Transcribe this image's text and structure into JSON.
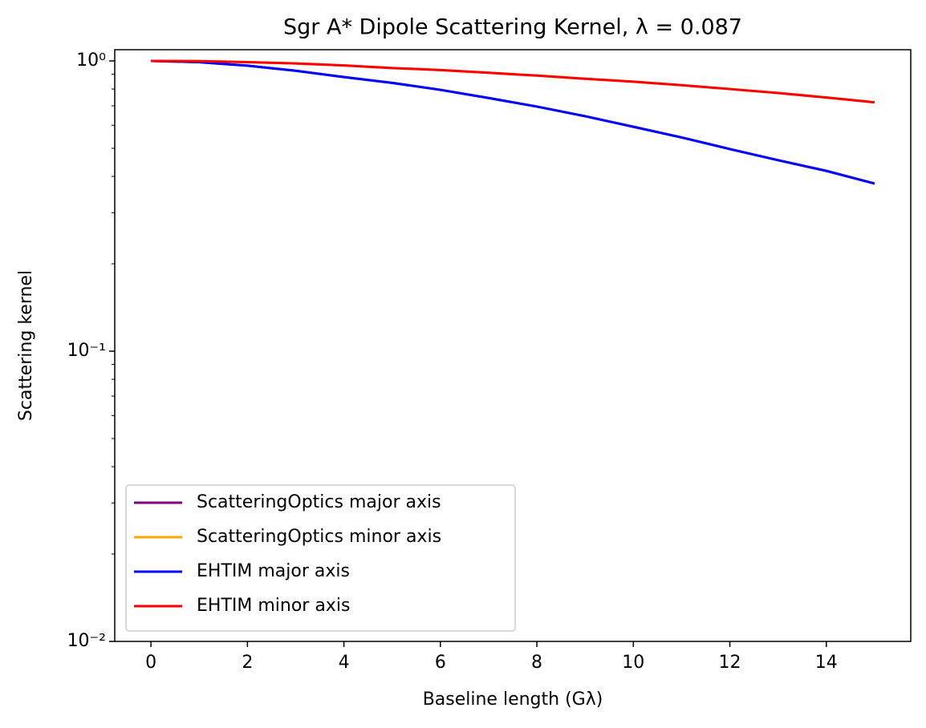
{
  "chart_data": {
    "type": "line",
    "title": "Sgr A* Dipole Scattering Kernel, λ = 0.087",
    "x_label": "Baseline length (Gλ)",
    "y_label": "Scattering kernel",
    "x": [
      0,
      1,
      2,
      3,
      4,
      5,
      6,
      7,
      8,
      9,
      10,
      11,
      12,
      13,
      14,
      15
    ],
    "series": [
      {
        "name": "ScatteringOptics major axis",
        "color": "#800080",
        "values": [
          1,
          0.99,
          0.963,
          0.925,
          0.88,
          0.84,
          0.795,
          0.745,
          0.696,
          0.645,
          0.593,
          0.545,
          0.497,
          0.455,
          0.418,
          0.378
        ]
      },
      {
        "name": "ScatteringOptics minor axis",
        "color": "#ffa500",
        "values": [
          1,
          0.998,
          0.99,
          0.98,
          0.965,
          0.945,
          0.93,
          0.91,
          0.89,
          0.868,
          0.848,
          0.825,
          0.8,
          0.775,
          0.748,
          0.72
        ]
      },
      {
        "name": "EHTIM major axis",
        "color": "#0000ff",
        "values": [
          1,
          0.99,
          0.963,
          0.925,
          0.88,
          0.84,
          0.795,
          0.745,
          0.696,
          0.645,
          0.593,
          0.545,
          0.497,
          0.455,
          0.418,
          0.378
        ]
      },
      {
        "name": "EHTIM minor axis",
        "color": "#ff0000",
        "values": [
          1,
          0.998,
          0.99,
          0.98,
          0.965,
          0.945,
          0.93,
          0.91,
          0.89,
          0.868,
          0.848,
          0.825,
          0.8,
          0.775,
          0.748,
          0.72
        ]
      }
    ],
    "xlim": [
      -0.75,
      15.75
    ],
    "xticks": [
      0,
      2,
      4,
      6,
      8,
      10,
      12,
      14
    ],
    "ylim": [
      0.01,
      1.093
    ],
    "log_y": true,
    "yticks": [
      {
        "value": 0.01,
        "label": "10⁻²"
      },
      {
        "value": 0.1,
        "label": "10⁻¹"
      },
      {
        "value": 1,
        "label": "10⁰"
      }
    ],
    "yminor": [
      0.02,
      0.03,
      0.04,
      0.05,
      0.06,
      0.07,
      0.08,
      0.09,
      0.2,
      0.3,
      0.4,
      0.5,
      0.6,
      0.7,
      0.8,
      0.9
    ],
    "legend": "lower left"
  }
}
